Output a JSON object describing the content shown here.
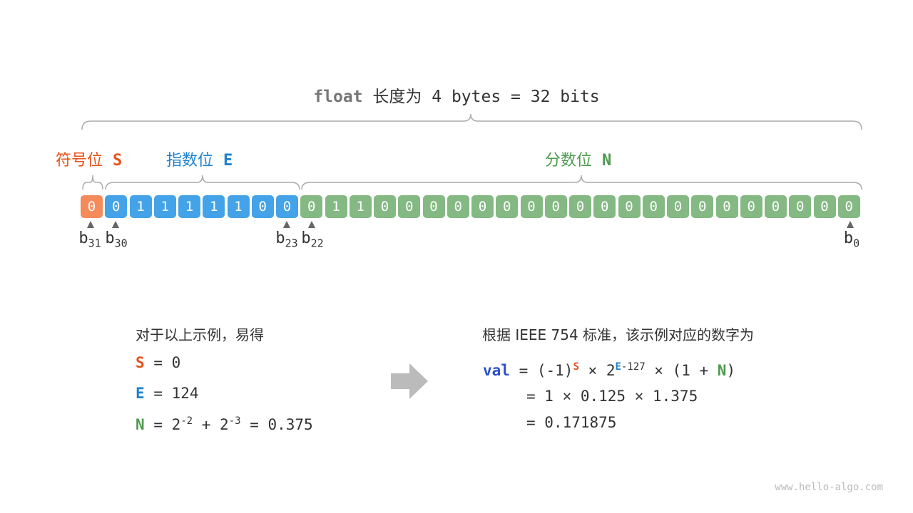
{
  "title": {
    "keyword": "float",
    "text": " 长度为 4 bytes = 32 bits"
  },
  "fields": {
    "sign": {
      "label": "符号位",
      "symbol": "S",
      "color": "#e8501a"
    },
    "exponent": {
      "label": "指数位",
      "symbol": "E",
      "color": "#1e82d0"
    },
    "mantissa": {
      "label": "分数位",
      "symbol": "N",
      "color": "#4e9a4e"
    }
  },
  "bits": {
    "sign": "0",
    "exponent": "01111100",
    "mantissa": "01100000000000000000000",
    "colors": {
      "sign": "#f58a5a",
      "exponent": "#44a3e8",
      "mantissa": "#84b983"
    }
  },
  "bit_labels": [
    {
      "b": "b",
      "sub": "31"
    },
    {
      "b": "b",
      "sub": "30"
    },
    {
      "b": "b",
      "sub": "23"
    },
    {
      "b": "b",
      "sub": "22"
    },
    {
      "b": "b",
      "sub": "0"
    }
  ],
  "left": {
    "heading": "对于以上示例，易得",
    "s_line": "= 0",
    "e_line": "= 124",
    "n_eq": "= 2",
    "n_exp1": "-2",
    "n_plus": " + 2",
    "n_exp2": "-3",
    "n_res": " = 0.375"
  },
  "right": {
    "heading": "根据 IEEE 754 标准，该示例对应的数字为",
    "val": "val",
    "l1a": " = (-1)",
    "l1b": " × 2",
    "l1c": "-127",
    "l1d": " × (1 + ",
    "l1e": ")",
    "l2": "= 1 × 0.125 × 1.375",
    "l3": "= 0.171875"
  },
  "watermark": "www.hello-algo.com"
}
